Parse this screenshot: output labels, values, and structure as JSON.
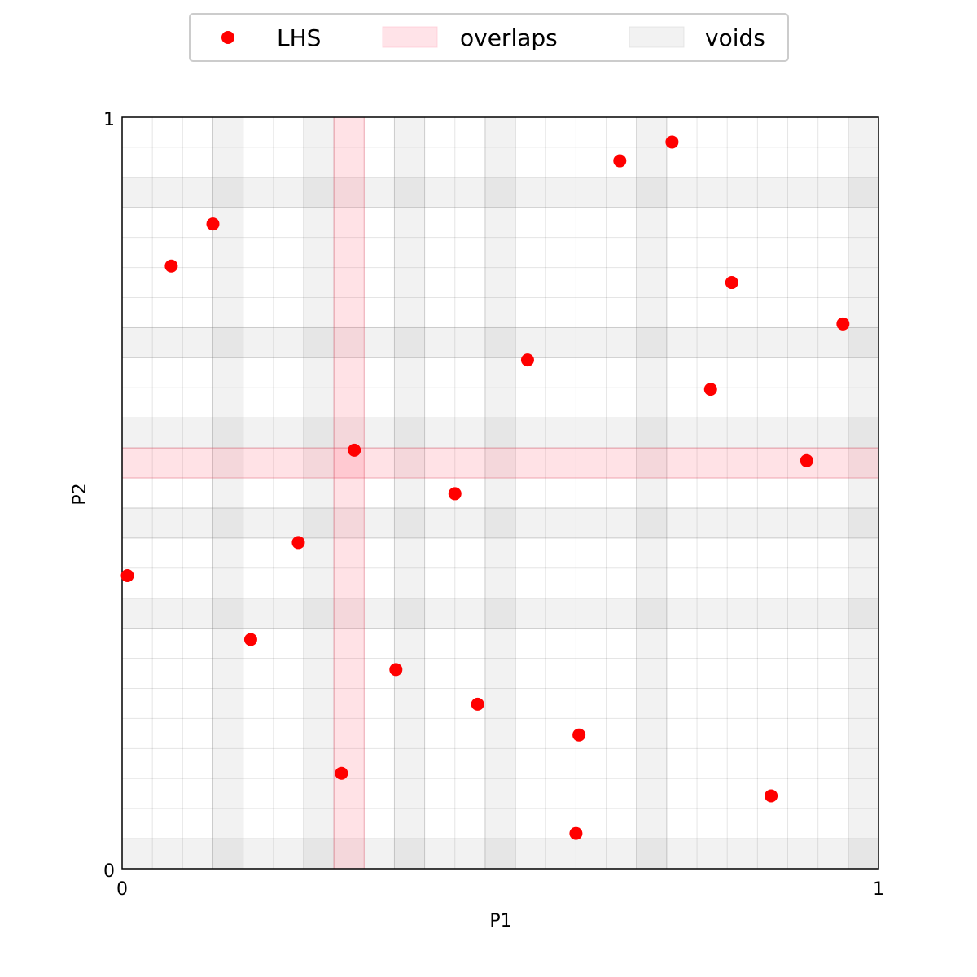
{
  "chart_data": {
    "type": "scatter",
    "xlabel": "P1",
    "ylabel": "P2",
    "xlim": [
      0,
      1
    ],
    "ylim": [
      0,
      1
    ],
    "x_ticks": [
      "0",
      "1"
    ],
    "y_ticks": [
      "0",
      "1"
    ],
    "grid": true,
    "grid_divisions": 25,
    "legend_position": "top-center",
    "legend": [
      {
        "label": "LHS",
        "kind": "marker",
        "color": "#ff0000"
      },
      {
        "label": "overlaps",
        "kind": "patch",
        "color": "#ffc0cb"
      },
      {
        "label": "voids",
        "kind": "patch",
        "color": "#d3d3d3"
      }
    ],
    "series": [
      {
        "name": "LHS",
        "color": "#ff0000",
        "points": [
          {
            "x": 0.007,
            "y": 0.39
          },
          {
            "x": 0.065,
            "y": 0.802
          },
          {
            "x": 0.12,
            "y": 0.858
          },
          {
            "x": 0.17,
            "y": 0.305
          },
          {
            "x": 0.233,
            "y": 0.434
          },
          {
            "x": 0.29,
            "y": 0.127
          },
          {
            "x": 0.307,
            "y": 0.557
          },
          {
            "x": 0.362,
            "y": 0.265
          },
          {
            "x": 0.44,
            "y": 0.499
          },
          {
            "x": 0.47,
            "y": 0.219
          },
          {
            "x": 0.536,
            "y": 0.677
          },
          {
            "x": 0.6,
            "y": 0.047
          },
          {
            "x": 0.604,
            "y": 0.178
          },
          {
            "x": 0.658,
            "y": 0.942
          },
          {
            "x": 0.727,
            "y": 0.967
          },
          {
            "x": 0.778,
            "y": 0.638
          },
          {
            "x": 0.806,
            "y": 0.78
          },
          {
            "x": 0.858,
            "y": 0.097
          },
          {
            "x": 0.905,
            "y": 0.543
          },
          {
            "x": 0.953,
            "y": 0.725
          }
        ]
      }
    ],
    "overlaps": {
      "color": "#ffc0cb",
      "p1_bands": [
        [
          0.28,
          0.32
        ]
      ],
      "p2_bands": [
        [
          0.52,
          0.56
        ]
      ]
    },
    "voids": {
      "color": "#d3d3d3",
      "p1_bands": [
        [
          0.12,
          0.16
        ],
        [
          0.24,
          0.28
        ],
        [
          0.36,
          0.4
        ],
        [
          0.48,
          0.52
        ],
        [
          0.68,
          0.72
        ],
        [
          0.96,
          1.0
        ]
      ],
      "p2_bands": [
        [
          0.0,
          0.04
        ],
        [
          0.32,
          0.36
        ],
        [
          0.44,
          0.48
        ],
        [
          0.56,
          0.6
        ],
        [
          0.68,
          0.72
        ],
        [
          0.88,
          0.92
        ]
      ]
    }
  }
}
